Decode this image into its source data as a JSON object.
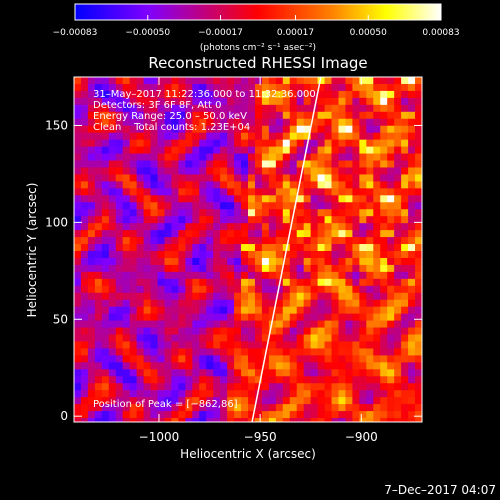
{
  "chart_data": {
    "type": "heatmap",
    "title": "Reconstructed RHESSI Image",
    "xlabel": "Heliocentric X (arcsec)",
    "ylabel": "Heliocentric Y (arcsec)",
    "xlim": [
      -1042,
      -870
    ],
    "ylim": [
      -3,
      175
    ],
    "x_ticks": [
      -1000,
      -950,
      -900
    ],
    "x_tick_labels": [
      "−1000",
      "−950",
      "−900"
    ],
    "y_ticks": [
      0,
      50,
      100,
      150
    ],
    "y_tick_labels": [
      "0",
      "50",
      "100",
      "150"
    ],
    "colorbar": {
      "range": [
        -0.00083,
        0.00083
      ],
      "ticks": [
        -0.00083,
        -0.0005,
        -0.00017,
        0.00017,
        0.0005,
        0.00083
      ],
      "tick_labels": [
        "−0.00083",
        "−0.00050",
        "−0.00017",
        "0.00017",
        "0.00050",
        "0.00083"
      ],
      "units": "(photons cm⁻² s⁻¹ asec⁻²)",
      "colors": [
        "#0000ff",
        "#7f00ff",
        "#ff0000",
        "#ff8000",
        "#ffff00",
        "#ffffff"
      ]
    },
    "annotations": {
      "time": "31–May–2017 11:22:36.000 to 11:32:36.000",
      "detectors": "Detectors: 3F 6F 8F, Att 0",
      "energy": "Energy Range: 25.0 – 50.0 keV",
      "clean": "Clean    Total counts: 1.23E+04",
      "peak": "Position of Peak = [−862,86]"
    },
    "limb": [
      [
        -954,
        -3
      ],
      [
        -920,
        175
      ]
    ],
    "timestamp": "7–Dec–2017 04:07"
  }
}
